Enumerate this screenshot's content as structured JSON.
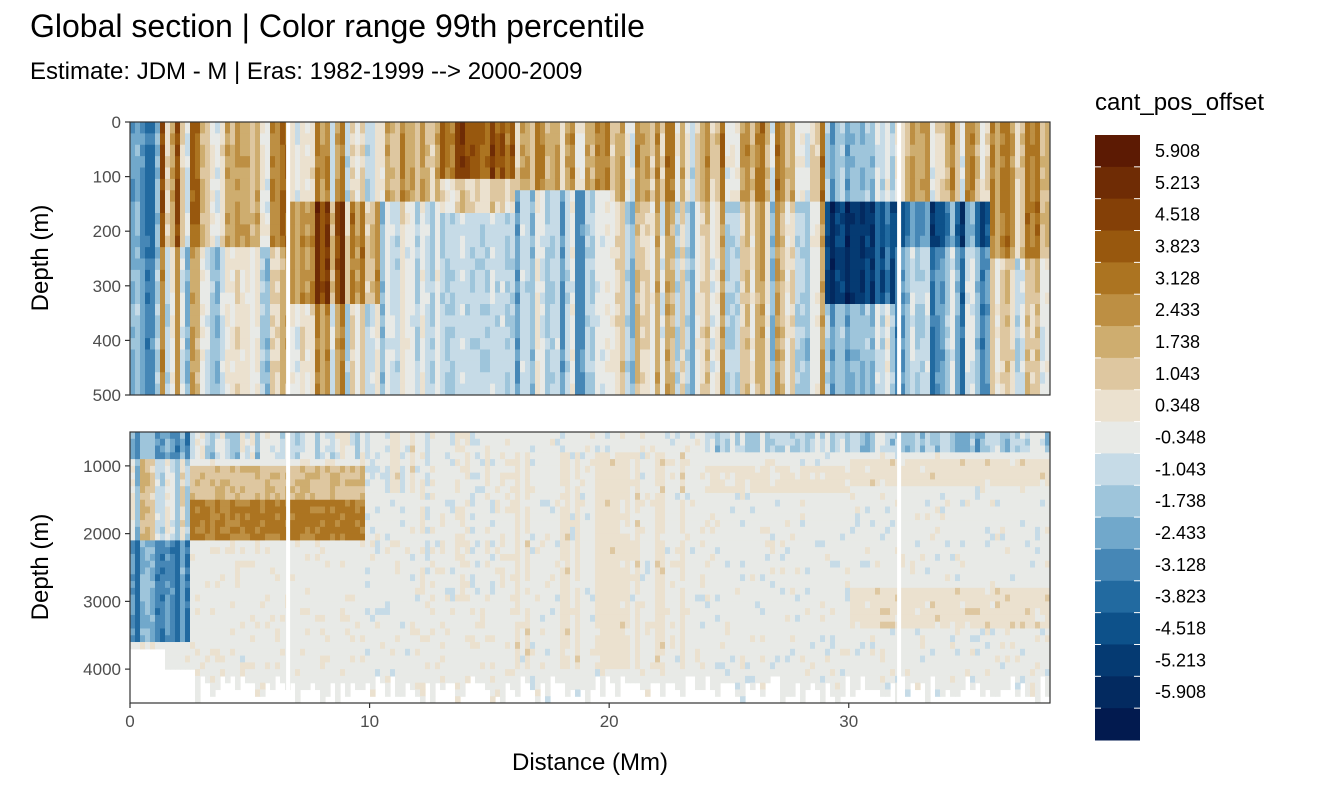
{
  "chart_data": {
    "type": "heatmap",
    "title": "Global section | Color range 99th percentile",
    "subtitle": "Estimate: JDM - M | Eras: 1982-1999 --> 2000-2009",
    "xlabel": "Distance (Mm)",
    "ylabel": "Depth (m)",
    "x_ticks": [
      0,
      10,
      20,
      30
    ],
    "xlim": [
      0,
      38.4
    ],
    "panels": [
      {
        "name": "upper",
        "ylim": [
          0,
          500
        ],
        "y_reversed": true,
        "y_ticks": [
          0,
          100,
          200,
          300,
          400,
          500
        ]
      },
      {
        "name": "lower",
        "ylim": [
          500,
          4500
        ],
        "y_reversed": true,
        "y_ticks": [
          1000,
          2000,
          3000,
          4000
        ]
      }
    ],
    "legend": {
      "title": "cant_pos_offset",
      "position": "right",
      "breaks": [
        "5.908",
        "5.213",
        "4.518",
        "3.823",
        "3.128",
        "2.433",
        "1.738",
        "1.043",
        "0.348",
        "-0.348",
        "-1.043",
        "-1.738",
        "-2.433",
        "-3.128",
        "-3.823",
        "-4.518",
        "-5.213",
        "-5.908"
      ],
      "colors": [
        "#5c1a03",
        "#6f2c05",
        "#844007",
        "#98580e",
        "#ac7421",
        "#bd8f43",
        "#cead6f",
        "#dec7a0",
        "#ebe1cf",
        "#e8eae7",
        "#c6dbe7",
        "#9ec5db",
        "#71a8cb",
        "#4687b6",
        "#226aa0",
        "#0d518a",
        "#053a72",
        "#032a60",
        "#021a4f"
      ]
    },
    "gaps": [
      6.6,
      32.1
    ],
    "grid": false
  }
}
